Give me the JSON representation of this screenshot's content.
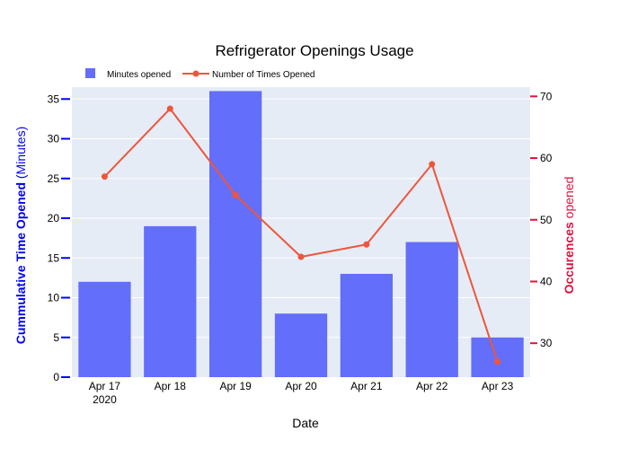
{
  "chart_data": {
    "type": "bar",
    "title": "Refrigerator Openings Usage",
    "xlabel": "Date",
    "categories": [
      "Apr 17",
      "Apr 18",
      "Apr 19",
      "Apr 20",
      "Apr 21",
      "Apr 22",
      "Apr 23"
    ],
    "x_year_label": "2020",
    "y1_label": {
      "bold": "Cummulative Time Opened",
      "rest": " (Minutes)"
    },
    "y2_label": {
      "bold": "Occurences",
      "rest": " opened"
    },
    "y1_ticks": [
      0,
      5,
      10,
      15,
      20,
      25,
      30,
      35
    ],
    "y2_ticks": [
      30,
      40,
      50,
      60,
      70
    ],
    "y1_range": [
      0,
      36.5
    ],
    "y2_range": [
      24.5,
      71.5
    ],
    "grid": true,
    "legend_position": "top-left",
    "series": [
      {
        "name": "Minutes opened",
        "type": "bar",
        "axis": "y1",
        "color": "#636efa",
        "values": [
          12,
          19,
          36,
          8,
          13,
          17,
          5
        ]
      },
      {
        "name": "Number of Times Opened",
        "type": "line",
        "axis": "y2",
        "color": "#ef553b",
        "values": [
          57,
          68,
          54,
          44,
          46,
          59,
          27
        ]
      }
    ],
    "y1_color": "#0000ff",
    "y2_color": "#dc143c",
    "plot_bg": "#e5ecf6"
  }
}
